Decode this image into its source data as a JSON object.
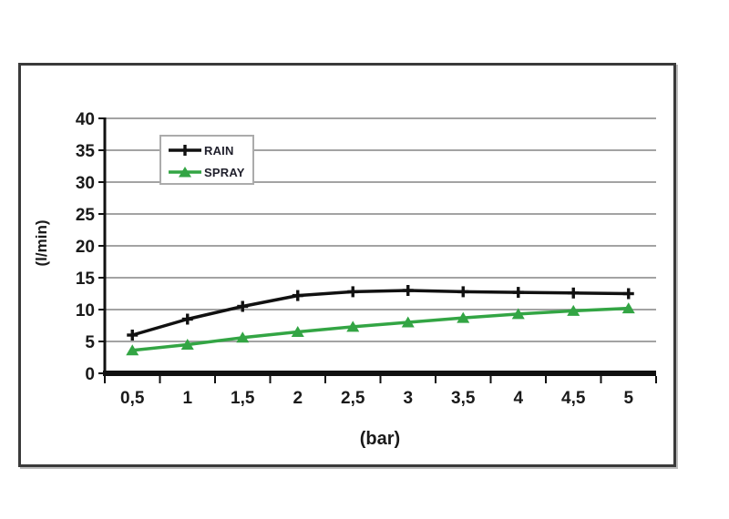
{
  "chart_data": {
    "type": "line",
    "title": "",
    "xlabel": "(bar)",
    "ylabel": "(l/min)",
    "x_values": [
      0.5,
      1,
      1.5,
      2,
      2.5,
      3,
      3.5,
      4,
      4.5,
      5
    ],
    "x_tick_labels": [
      "0,5",
      "1",
      "1,5",
      "2",
      "2,5",
      "3",
      "3,5",
      "4",
      "4,5",
      "5"
    ],
    "y_ticks": [
      0,
      5,
      10,
      15,
      20,
      25,
      30,
      35,
      40
    ],
    "y_tick_labels": [
      "0",
      "5",
      "10",
      "15",
      "20",
      "25",
      "30",
      "35",
      "40"
    ],
    "ylim": [
      0,
      40
    ],
    "grid": "horizontal",
    "legend_position": "top-left-inside",
    "series": [
      {
        "name": "RAIN",
        "color": "#111111",
        "marker": "plus",
        "values": [
          6,
          8.5,
          10.5,
          12.2,
          12.8,
          13,
          12.8,
          12.7,
          12.6,
          12.5
        ]
      },
      {
        "name": "SPRAY",
        "color": "#33a544",
        "marker": "triangle",
        "values": [
          3.6,
          4.5,
          5.6,
          6.5,
          7.3,
          8,
          8.7,
          9.3,
          9.8,
          10.2
        ]
      }
    ]
  },
  "colors": {
    "background": "#ffffff",
    "frame_border": "#3a3a3a",
    "gridline": "#a3a3a3",
    "axis": "#111111",
    "tick_text": "#1a1a1a",
    "legend_border": "#ababab"
  }
}
